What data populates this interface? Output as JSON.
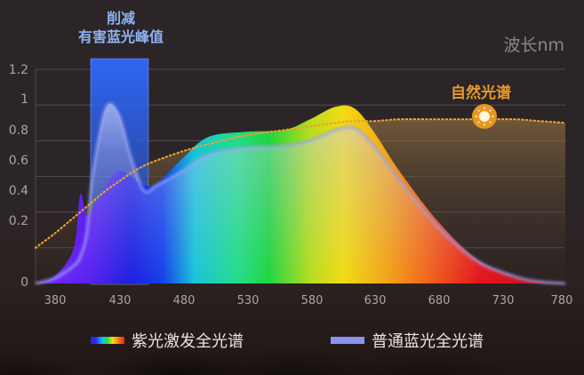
{
  "annotation": {
    "line1": "削减",
    "line2": "有害蓝光峰值",
    "box_color": "#2f6bff"
  },
  "unit_label": "波长nm",
  "natural_label": "自然光谱",
  "legend": [
    {
      "label": "紫光激发全光谱",
      "swatch": "rainbow"
    },
    {
      "label": "普通蓝光全光谱",
      "color": "#8a93ee"
    }
  ],
  "y_ticks": [
    "1.2",
    "1",
    "0.8",
    "0.6",
    "0.4",
    "0.2",
    "0"
  ],
  "x_ticks": [
    "380",
    "430",
    "480",
    "530",
    "580",
    "630",
    "680",
    "730",
    "780"
  ],
  "colors": {
    "natural": "#e59a2a",
    "common_blue": "#8a93ee",
    "grid": "#5a5457"
  },
  "chart_data": {
    "type": "area",
    "title": "",
    "xlabel": "波长nm",
    "ylabel": "",
    "xlim": [
      365,
      780
    ],
    "ylim": [
      0,
      1.2
    ],
    "grid": true,
    "legend_position": "bottom",
    "annotations": [
      {
        "text": "削减 有害蓝光峰值",
        "type": "highlight-band",
        "x_range": [
          405,
          450
        ]
      },
      {
        "text": "自然光谱",
        "type": "label",
        "x": 715,
        "y": 0.9
      }
    ],
    "x": [
      365,
      380,
      395,
      400,
      405,
      410,
      420,
      430,
      440,
      450,
      460,
      480,
      500,
      530,
      560,
      580,
      600,
      615,
      630,
      650,
      680,
      710,
      740,
      760,
      780
    ],
    "series": [
      {
        "name": "紫光激发全光谱",
        "values": [
          0.0,
          0.04,
          0.2,
          0.5,
          0.38,
          0.42,
          0.55,
          0.63,
          0.6,
          0.55,
          0.56,
          0.7,
          0.82,
          0.85,
          0.86,
          0.92,
          0.99,
          0.98,
          0.85,
          0.63,
          0.35,
          0.14,
          0.04,
          0.01,
          0.0
        ]
      },
      {
        "name": "普通蓝光全光谱",
        "values": [
          0.0,
          0.03,
          0.1,
          0.15,
          0.28,
          0.62,
          0.98,
          0.95,
          0.7,
          0.52,
          0.55,
          0.63,
          0.72,
          0.76,
          0.77,
          0.8,
          0.86,
          0.87,
          0.77,
          0.58,
          0.32,
          0.13,
          0.04,
          0.01,
          0.0
        ]
      },
      {
        "name": "自然光谱",
        "values": [
          0.2,
          0.28,
          0.37,
          0.4,
          0.43,
          0.46,
          0.52,
          0.57,
          0.62,
          0.66,
          0.69,
          0.74,
          0.78,
          0.83,
          0.86,
          0.88,
          0.9,
          0.91,
          0.91,
          0.92,
          0.92,
          0.92,
          0.92,
          0.91,
          0.9
        ]
      }
    ]
  }
}
